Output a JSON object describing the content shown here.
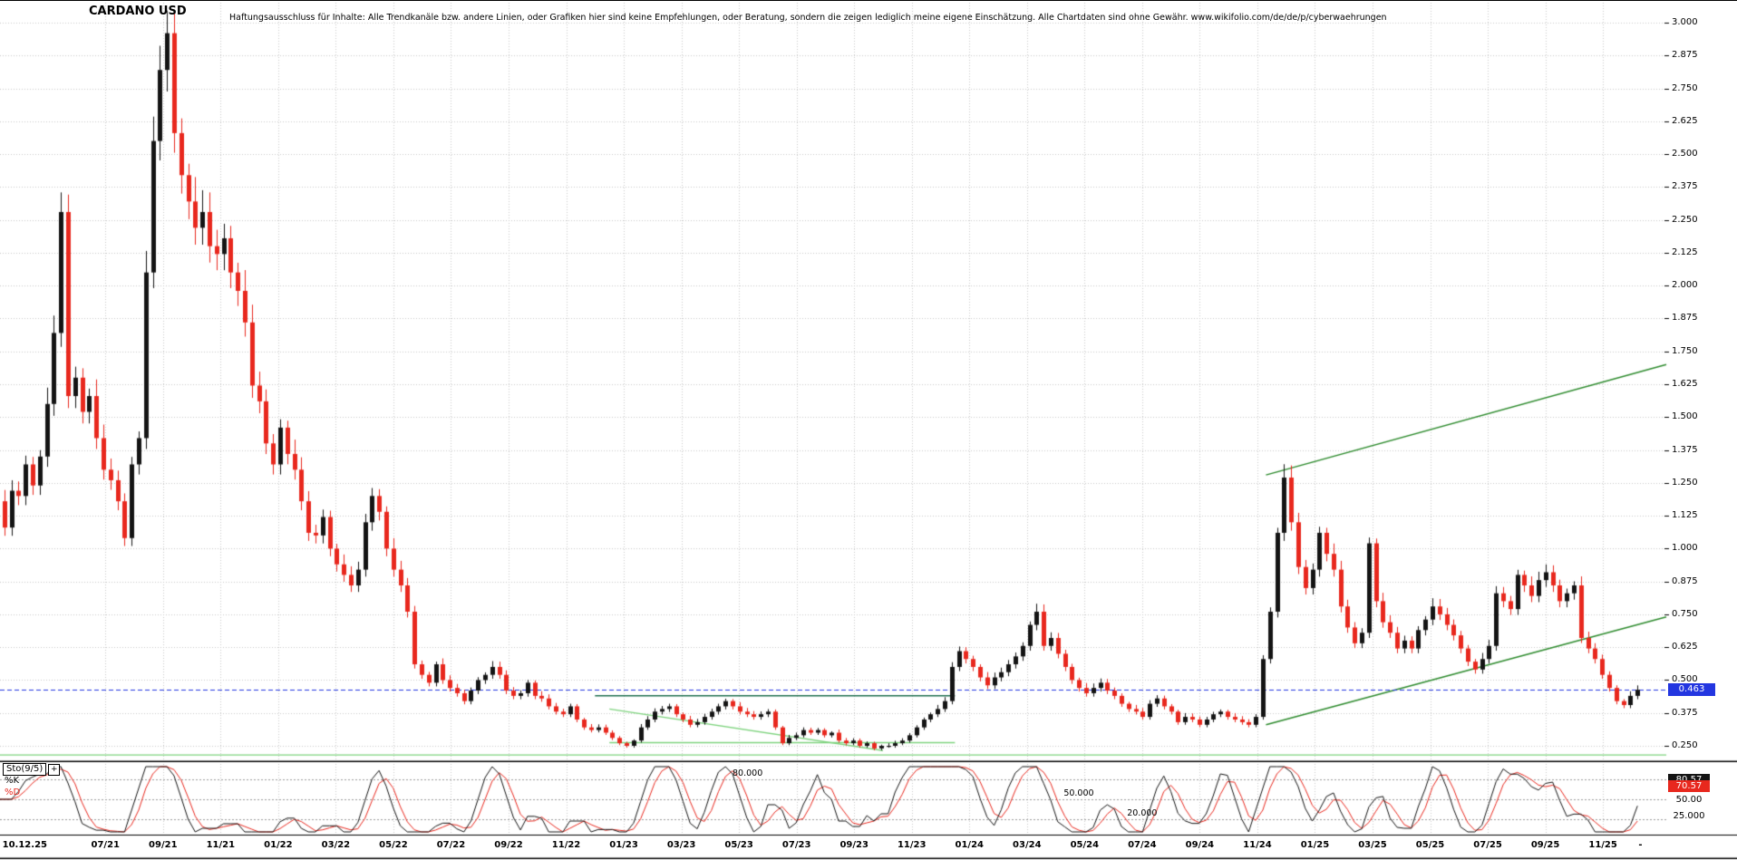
{
  "title": "CARDANO USD",
  "disclaimer": "Haftungsausschluss für Inhalte: Alle Trendkanäle bzw. andere Linien, oder Grafiken hier sind keine Empfehlungen, oder Beratung, sondern die zeigen lediglich meine eigene Einschätzung. Alle Chartdaten sind ohne Gewähr.  www.wikifolio.com/de/de/p/cyberwaehrungen",
  "chart_data": {
    "type": "candlestick",
    "title": "CARDANO USD",
    "y_axis": {
      "tick_max": 3.0,
      "tick_step": 0.125,
      "labels": [
        "3.000",
        "2.875",
        "2.750",
        "2.625",
        "2.500",
        "2.375",
        "2.250",
        "2.125",
        "2.000",
        "1.875",
        "1.750",
        "1.625",
        "1.500",
        "1.375",
        "1.250",
        "1.125",
        "1.000",
        "0.875",
        "0.750",
        "0.625",
        "0.500",
        "0.375",
        "0.250"
      ]
    },
    "x_ticks": [
      {
        "m": 1.2,
        "t": "10.12.25",
        "g": 0
      },
      {
        "m": 4,
        "t": "07/21",
        "g": 1
      },
      {
        "m": 6,
        "t": "09/21",
        "g": 1
      },
      {
        "m": 8,
        "t": "11/21",
        "g": 1
      },
      {
        "m": 10,
        "t": "01/22",
        "g": 1
      },
      {
        "m": 12,
        "t": "03/22",
        "g": 1
      },
      {
        "m": 14,
        "t": "05/22",
        "g": 1
      },
      {
        "m": 16,
        "t": "07/22",
        "g": 1
      },
      {
        "m": 18,
        "t": "09/22",
        "g": 1
      },
      {
        "m": 20,
        "t": "11/22",
        "g": 1
      },
      {
        "m": 22,
        "t": "01/23",
        "g": 1
      },
      {
        "m": 24,
        "t": "03/23",
        "g": 1
      },
      {
        "m": 26,
        "t": "05/23",
        "g": 1
      },
      {
        "m": 28,
        "t": "07/23",
        "g": 1
      },
      {
        "m": 30,
        "t": "09/23",
        "g": 1
      },
      {
        "m": 32,
        "t": "11/23",
        "g": 1
      },
      {
        "m": 34,
        "t": "01/24",
        "g": 1
      },
      {
        "m": 36,
        "t": "03/24",
        "g": 1
      },
      {
        "m": 38,
        "t": "05/24",
        "g": 1
      },
      {
        "m": 40,
        "t": "07/24",
        "g": 1
      },
      {
        "m": 42,
        "t": "09/24",
        "g": 1
      },
      {
        "m": 44,
        "t": "11/24",
        "g": 1
      },
      {
        "m": 46,
        "t": "01/25",
        "g": 1
      },
      {
        "m": 48,
        "t": "03/25",
        "g": 1
      },
      {
        "m": 50,
        "t": "05/25",
        "g": 1
      },
      {
        "m": 52,
        "t": "07/25",
        "g": 1
      },
      {
        "m": 54,
        "t": "09/25",
        "g": 1
      },
      {
        "m": 56,
        "t": "11/25",
        "g": 1
      },
      {
        "m": 57.3,
        "t": "-",
        "g": 0
      }
    ],
    "candles": {
      "start_month": 0,
      "end_month": 57.2,
      "closes": [
        1.12,
        1.18,
        1.08,
        1.22,
        1.2,
        1.32,
        1.24,
        1.35,
        1.55,
        1.82,
        2.28,
        1.58,
        1.65,
        1.52,
        1.58,
        1.42,
        1.3,
        1.26,
        1.18,
        1.04,
        1.32,
        1.42,
        2.05,
        2.55,
        2.82,
        2.96,
        2.58,
        2.42,
        2.32,
        2.22,
        2.28,
        2.15,
        2.12,
        2.18,
        2.05,
        1.98,
        1.86,
        1.62,
        1.56,
        1.4,
        1.32,
        1.46,
        1.36,
        1.3,
        1.18,
        1.06,
        1.05,
        1.12,
        1.0,
        0.94,
        0.9,
        0.86,
        0.92,
        1.1,
        1.2,
        1.14,
        1.0,
        0.92,
        0.86,
        0.76,
        0.56,
        0.52,
        0.49,
        0.56,
        0.5,
        0.47,
        0.45,
        0.42,
        0.46,
        0.5,
        0.52,
        0.55,
        0.52,
        0.46,
        0.44,
        0.45,
        0.49,
        0.44,
        0.43,
        0.4,
        0.38,
        0.37,
        0.4,
        0.35,
        0.32,
        0.31,
        0.32,
        0.3,
        0.28,
        0.26,
        0.25,
        0.27,
        0.32,
        0.35,
        0.38,
        0.39,
        0.4,
        0.37,
        0.35,
        0.33,
        0.34,
        0.36,
        0.38,
        0.4,
        0.42,
        0.4,
        0.38,
        0.37,
        0.36,
        0.37,
        0.38,
        0.32,
        0.26,
        0.28,
        0.29,
        0.31,
        0.3,
        0.31,
        0.29,
        0.3,
        0.27,
        0.26,
        0.27,
        0.25,
        0.26,
        0.24,
        0.25,
        0.25,
        0.26,
        0.27,
        0.29,
        0.32,
        0.35,
        0.37,
        0.39,
        0.42,
        0.55,
        0.61,
        0.58,
        0.55,
        0.51,
        0.48,
        0.51,
        0.53,
        0.56,
        0.59,
        0.63,
        0.71,
        0.76,
        0.63,
        0.66,
        0.6,
        0.55,
        0.5,
        0.47,
        0.45,
        0.47,
        0.49,
        0.46,
        0.44,
        0.41,
        0.39,
        0.38,
        0.36,
        0.41,
        0.43,
        0.4,
        0.38,
        0.34,
        0.36,
        0.35,
        0.33,
        0.35,
        0.37,
        0.38,
        0.36,
        0.35,
        0.34,
        0.33,
        0.36,
        0.58,
        0.76,
        1.06,
        1.27,
        1.1,
        0.93,
        0.85,
        0.92,
        1.06,
        0.98,
        0.92,
        0.78,
        0.7,
        0.64,
        0.68,
        1.02,
        0.8,
        0.72,
        0.68,
        0.62,
        0.65,
        0.62,
        0.69,
        0.73,
        0.78,
        0.75,
        0.71,
        0.67,
        0.62,
        0.57,
        0.54,
        0.58,
        0.63,
        0.83,
        0.8,
        0.77,
        0.9,
        0.86,
        0.82,
        0.88,
        0.91,
        0.86,
        0.8,
        0.83,
        0.86,
        0.66,
        0.62,
        0.58,
        0.52,
        0.47,
        0.42,
        0.405,
        0.44,
        0.463
      ]
    },
    "current_price": 0.463,
    "current_price_label": "0.463",
    "trend_lines": [
      {
        "name": "channel-upper",
        "m1": 44.3,
        "p1": 1.28,
        "m2": 58.2,
        "p2": 1.7,
        "color": "#2e8b2e",
        "w": 1.5
      },
      {
        "name": "channel-lower",
        "m1": 44.3,
        "p1": 0.33,
        "m2": 58.2,
        "p2": 0.74,
        "color": "#2e8b2e",
        "w": 1.5
      },
      {
        "name": "resistance-2023",
        "m1": 21.0,
        "p1": 0.44,
        "m2": 33.5,
        "p2": 0.44,
        "color": "#1d6e4e",
        "w": 1.5
      },
      {
        "name": "support-2023",
        "m1": 21.5,
        "p1": 0.262,
        "m2": 33.5,
        "p2": 0.262,
        "color": "#7fd37f",
        "w": 1.5
      },
      {
        "name": "descending-2023",
        "m1": 21.5,
        "p1": 0.39,
        "m2": 31.0,
        "p2": 0.232,
        "color": "#7fd37f",
        "w": 1.5
      },
      {
        "name": "base-line",
        "m1": 0,
        "p1": 0.215,
        "m2": 58.2,
        "p2": 0.215,
        "color": "#7fd37f",
        "w": 1.2
      }
    ],
    "colors": {
      "up": "#141414",
      "down": "#e8281e",
      "grid": "#c8c8c8",
      "current_line": "#2336e0",
      "stoch_guide": "#9a9a9a"
    },
    "stochastic": {
      "panel_label": "Sto(9/5)",
      "expand_icon": "+",
      "k_label": "%K",
      "d_label": "%D",
      "k_color": "#141414",
      "d_color": "#e8281e",
      "period": 5,
      "smooth": 3,
      "level_labels": [
        {
          "t": "80.000",
          "v": 80,
          "m": 26.3
        },
        {
          "t": "50.000",
          "v": 50,
          "m": 37.8
        },
        {
          "t": "20.000",
          "v": 20,
          "m": 40.0
        }
      ],
      "right_values": [
        {
          "t": "80.57",
          "v": 80.57,
          "bg": "#141414",
          "fg": "#ffffff"
        },
        {
          "t": "70.57",
          "v": 70.57,
          "bg": "#e8281e",
          "fg": "#ffffff"
        },
        {
          "t": "50.00",
          "v": 50,
          "bg": "",
          "fg": "#000000"
        },
        {
          "t": "25.000",
          "v": 25,
          "bg": "",
          "fg": "#000000"
        }
      ]
    }
  }
}
